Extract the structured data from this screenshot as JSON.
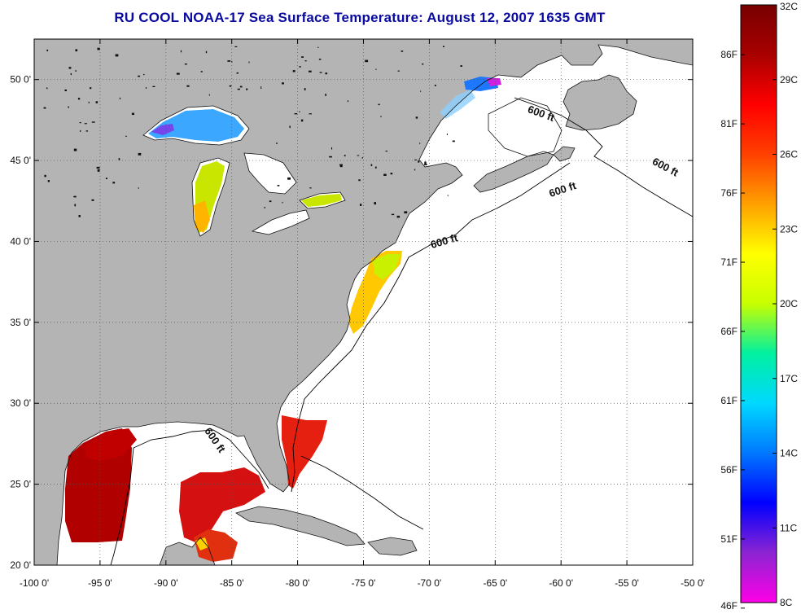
{
  "title": "RU COOL  NOAA-17  Sea Surface Temperature:  August 12, 2007 1635 GMT",
  "map": {
    "lon_range": [
      -100,
      -50
    ],
    "lat_range": [
      20,
      52.5
    ],
    "lon_ticks": [
      {
        "value": -100,
        "label": "-100 0'"
      },
      {
        "value": -95,
        "label": "-95 0'"
      },
      {
        "value": -90,
        "label": "-90 0'"
      },
      {
        "value": -85,
        "label": "-85 0'"
      },
      {
        "value": -80,
        "label": "-80 0'"
      },
      {
        "value": -75,
        "label": "-75 0'"
      },
      {
        "value": -70,
        "label": "-70 0'"
      },
      {
        "value": -65,
        "label": "-65 0'"
      },
      {
        "value": -60,
        "label": "-60 0'"
      },
      {
        "value": -55,
        "label": "-55 0'"
      },
      {
        "value": -50,
        "label": "-50 0'"
      }
    ],
    "lat_ticks": [
      {
        "value": 20,
        "label": "20 0'"
      },
      {
        "value": 25,
        "label": "25 0'"
      },
      {
        "value": 30,
        "label": "30 0'"
      },
      {
        "value": 35,
        "label": "35 0'"
      },
      {
        "value": 40,
        "label": "40 0'"
      },
      {
        "value": 45,
        "label": "45 0'"
      },
      {
        "value": 50,
        "label": "50 0'"
      }
    ],
    "grid": "dotted",
    "land_color": "#b4b4b4",
    "ocean_color": "#ffffff",
    "contour_label": "600 ft",
    "contour_labels": [
      {
        "lon": -61.6,
        "lat": 47.7,
        "angle": 20
      },
      {
        "lon": -52.2,
        "lat": 44.4,
        "angle": 28
      },
      {
        "lon": -59.8,
        "lat": 43.0,
        "angle": -18
      },
      {
        "lon": -68.8,
        "lat": 39.8,
        "angle": -16
      },
      {
        "lon": -86.5,
        "lat": 27.6,
        "angle": 55
      }
    ]
  },
  "colorbar": {
    "colors": [
      "#ff00e6",
      "#8c24d2",
      "#0000ff",
      "#0078ff",
      "#00d8ff",
      "#00f0a0",
      "#c8ff00",
      "#ffff00",
      "#ffa000",
      "#ff4000",
      "#ff0000",
      "#a80000",
      "#780000"
    ],
    "celsius_min": 8,
    "celsius_max": 32,
    "celsius_labels": [
      "32C",
      "29C",
      "26C",
      "23C",
      "20C",
      "17C",
      "14C",
      "11C",
      "8C"
    ],
    "fahrenheit_labels": [
      "86F",
      "81F",
      "76F",
      "71F",
      "66F",
      "61F",
      "56F",
      "51F",
      "46F"
    ]
  }
}
